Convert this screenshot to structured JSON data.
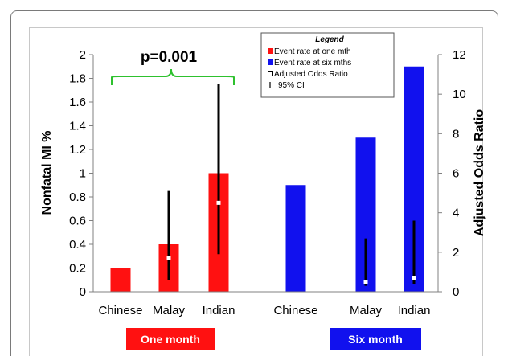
{
  "chart_data": {
    "type": "bar",
    "groups": [
      {
        "label": "One month",
        "color": "#ff1111",
        "categories": [
          "Chinese",
          "Malay",
          "Indian"
        ],
        "values": [
          0.2,
          0.4,
          1.0
        ],
        "axis": "left"
      },
      {
        "label": "Six month",
        "color": "#1111ee",
        "categories": [
          "Chinese",
          "Malay",
          "Indian"
        ],
        "values": [
          0.9,
          1.3,
          1.9
        ],
        "axis": "left"
      }
    ],
    "odds_ratio": [
      {
        "group": "One month",
        "category": "Malay",
        "or": 1.7,
        "ci": [
          0.6,
          5.1
        ]
      },
      {
        "group": "One month",
        "category": "Indian",
        "or": 4.5,
        "ci": [
          1.9,
          10.5
        ]
      },
      {
        "group": "Six month",
        "category": "Malay",
        "or": 0.5,
        "ci": [
          0.3,
          2.7
        ]
      },
      {
        "group": "Six month",
        "category": "Indian",
        "or": 0.7,
        "ci": [
          0.4,
          3.6
        ]
      }
    ],
    "ylabel_left": "Nonfatal MI %",
    "ylabel_right": "Adjusted Odds Ratio",
    "ylim_left": [
      0,
      2
    ],
    "yticks_left": [
      "0",
      "0.2",
      "0.4",
      "0.6",
      "0.8",
      "1",
      "1.2",
      "1.4",
      "1.6",
      "1.8",
      "2"
    ],
    "ylim_right": [
      0,
      12
    ],
    "yticks_right": [
      "0",
      "2",
      "4",
      "6",
      "8",
      "10",
      "12"
    ],
    "annotation": "p=0.001",
    "legend": {
      "title": "Legend",
      "placement": "top-right",
      "items": [
        {
          "label": "Event rate at one mth",
          "color": "#ff1111"
        },
        {
          "label": "Event rate at six mths",
          "color": "#1111ee"
        },
        {
          "label": "Adjusted Odds Ratio",
          "color": "#ffffff"
        },
        {
          "label": "95% CI",
          "color": "#000000"
        }
      ]
    }
  }
}
